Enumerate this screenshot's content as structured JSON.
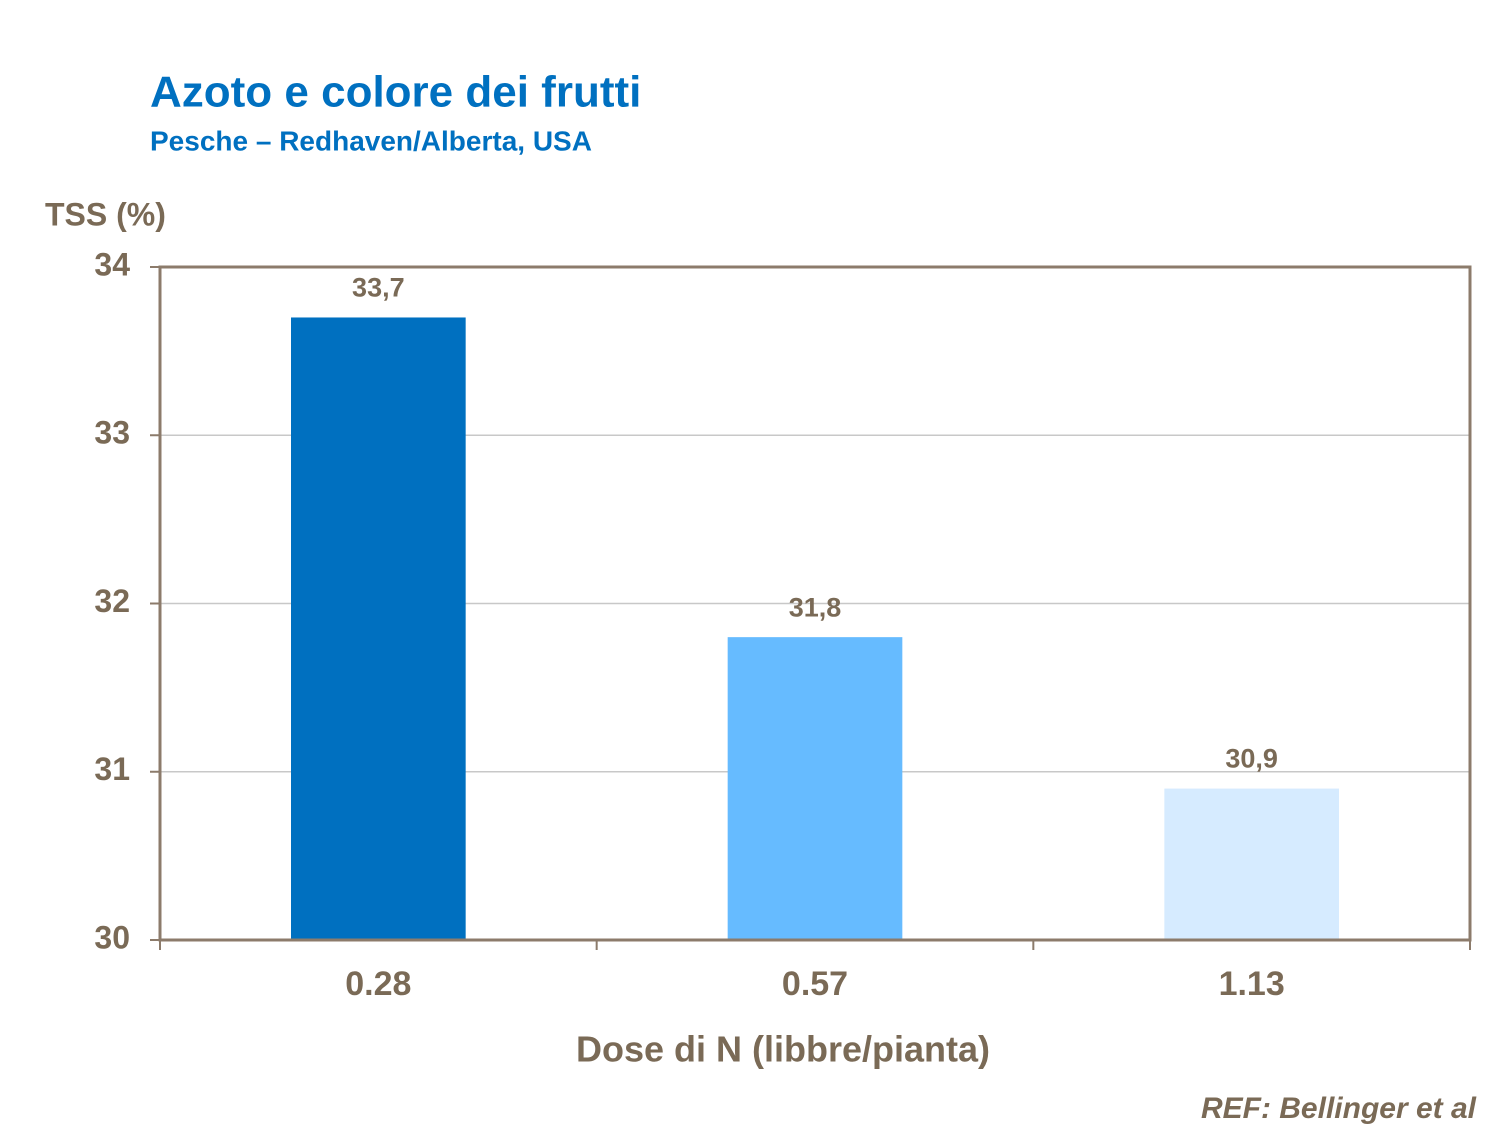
{
  "chart_data": {
    "type": "bar",
    "title": "Azoto e colore dei frutti",
    "subtitle": "Pesche – Redhaven/Alberta, USA",
    "y_label": "TSS (%)",
    "x_label": "Dose di N (libbre/pianta)",
    "note": "REF: Bellinger et al",
    "categories": [
      "0.28",
      "0.57",
      "1.13"
    ],
    "values": [
      33.7,
      31.8,
      30.9
    ],
    "value_labels": [
      "33,7",
      "31,8",
      "30,9"
    ],
    "colors": [
      "#0070c0",
      "#66bbff",
      "#d6ebff"
    ],
    "ylim": [
      30,
      34
    ],
    "yticks": [
      30,
      31,
      32,
      33,
      34
    ],
    "grid": true
  }
}
